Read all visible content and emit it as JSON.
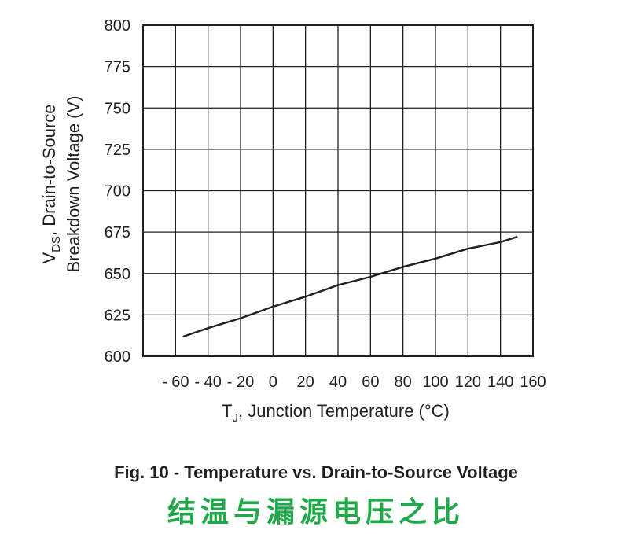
{
  "chart_data": {
    "type": "line",
    "x": [
      -55,
      -40,
      -20,
      0,
      20,
      40,
      60,
      80,
      100,
      120,
      140,
      150
    ],
    "series": [
      {
        "values": [
          612,
          617,
          623,
          630,
          636,
          643,
          648,
          654,
          659,
          665,
          669,
          672
        ]
      }
    ],
    "xlim": [
      -80,
      160
    ],
    "ylim": [
      600,
      800
    ],
    "x_ticks": [
      "- 60",
      "- 40",
      "- 20",
      "0",
      "20",
      "40",
      "60",
      "80",
      "100",
      "120",
      "140",
      "160"
    ],
    "y_ticks": [
      "600",
      "625",
      "650",
      "675",
      "700",
      "725",
      "750",
      "775",
      "800"
    ],
    "ylabel_line1_main": "V",
    "ylabel_line1_sub": "DS",
    "ylabel_line1_rest": ", Drain-to-Source",
    "ylabel_line2": "Breakdown Voltage (V)",
    "xlabel_main": "T",
    "xlabel_sub": "J",
    "xlabel_rest": ", Junction Temperature (°C)",
    "grid": true,
    "colors": {
      "line": "#231f20",
      "grid": "#231f20",
      "caption_cn": "#21a84a"
    }
  },
  "caption": {
    "figure": "Fig. 10 - Temperature vs. Drain-to-Source Voltage",
    "chinese": "结温与漏源电压之比"
  }
}
